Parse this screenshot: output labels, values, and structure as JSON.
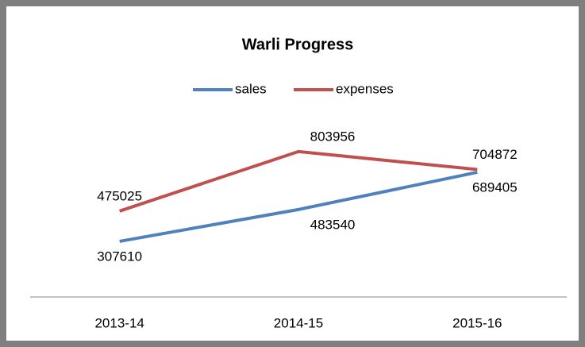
{
  "chart_data": {
    "type": "line",
    "title": "Warli Progress",
    "categories": [
      "2013-14",
      "2014-15",
      "2015-16"
    ],
    "series": [
      {
        "name": "sales",
        "color": "#4f81bd",
        "values": [
          307610,
          483540,
          689405
        ]
      },
      {
        "name": "expenses",
        "color": "#c0504d",
        "values": [
          475025,
          803956,
          704872
        ]
      }
    ],
    "ylim": [
      0,
      900000
    ],
    "legend": "top"
  }
}
